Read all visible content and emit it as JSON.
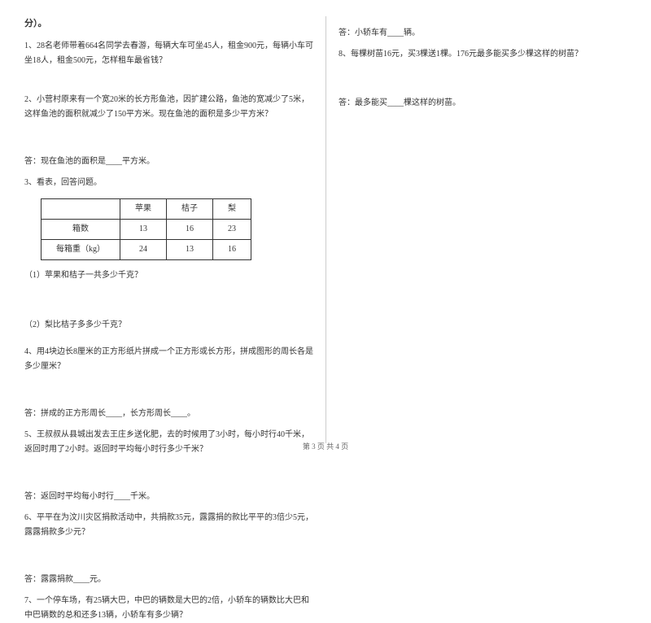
{
  "section_header": "分）。",
  "questions": {
    "q1": "1、28名老师带着664名同学去春游，每辆大车可坐45人，租金900元，每辆小车可坐18人，租金500元，怎样租车最省钱？",
    "q2": "2、小营村原来有一个宽20米的长方形鱼池，因扩建公路，鱼池的宽减少了5米，这样鱼池的面积就减少了150平方米。现在鱼池的面积是多少平方米？",
    "q2_answer": "答：现在鱼池的面积是____平方米。",
    "q3_intro": "3、看表，回答问题。",
    "q3_sub1": "（1）苹果和桔子一共多少千克？",
    "q3_sub2": "（2）梨比桔子多多少千克？",
    "q4": "4、用4块边长8厘米的正方形纸片拼成一个正方形或长方形，拼成图形的周长各是多少厘米？",
    "q4_answer": "答：拼成的正方形周长____，长方形周长____。",
    "q5": "5、王叔叔从县城出发去王庄乡送化肥，去的时候用了3小时，每小时行40千米，返回时用了2小时。返回时平均每小时行多少千米？",
    "q5_answer": "答：返回时平均每小时行____千米。",
    "q6": "6、平平在为汶川灾区捐款活动中，共捐款35元，露露捐的款比平平的3倍少5元，露露捐款多少元？",
    "q6_answer": "答：露露捐款____元。",
    "q7": "7、一个停车场，有25辆大巴，中巴的辆数是大巴的2倍，小轿车的辆数比大巴和中巴辆数的总和还多13辆，小轿车有多少辆？",
    "q7_answer": "答：小轿车有____辆。",
    "q8": "8、每棵树苗16元，买3棵送1棵。176元最多能买多少棵这样的树苗？",
    "q8_answer": "答：最多能买____棵这样的树苗。"
  },
  "table": {
    "headers": [
      "",
      "苹果",
      "桔子",
      "梨"
    ],
    "rows": [
      [
        "箱数",
        "13",
        "16",
        "23"
      ],
      [
        "每箱重（kg）",
        "24",
        "13",
        "16"
      ]
    ]
  },
  "page_number": "第 3 页 共 4 页",
  "colors": {
    "text": "#333333",
    "border": "#333333",
    "divider": "#cccccc",
    "page_num": "#666666",
    "background": "#ffffff"
  },
  "typography": {
    "body_fontsize": 10,
    "header_fontsize": 11,
    "pagenum_fontsize": 9,
    "font_family": "SimSun"
  }
}
